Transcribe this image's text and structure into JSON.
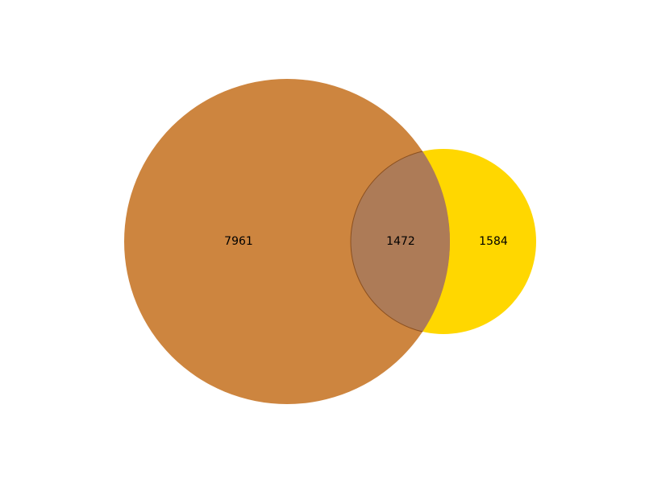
{
  "chart_data": {
    "type": "venn",
    "sets": [
      {
        "only_count": 7961,
        "color": "#CD853F"
      },
      {
        "only_count": 1584,
        "color": "#FFD700"
      }
    ],
    "intersection": {
      "count": 1472,
      "color": "#AD7B57"
    },
    "labels": {
      "left_only": "7961",
      "intersection": "1472",
      "right_only": "1584"
    }
  }
}
